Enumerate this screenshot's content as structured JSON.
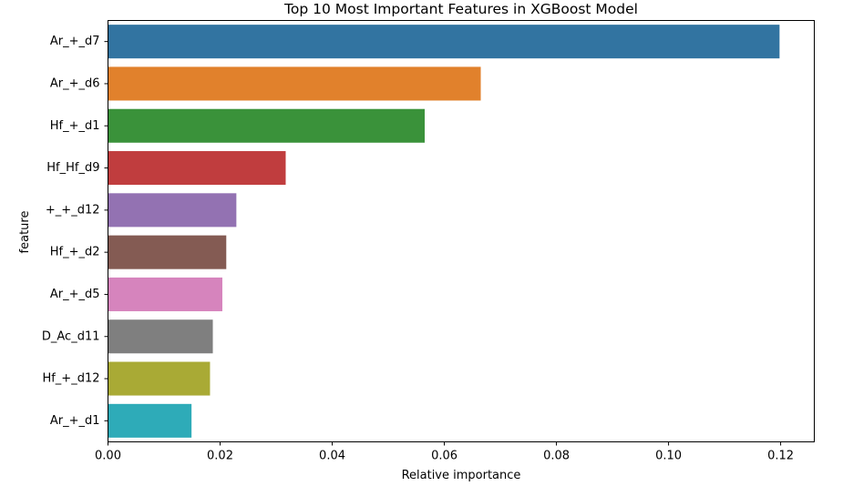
{
  "chart_data": {
    "type": "bar",
    "orientation": "horizontal",
    "title": "Top 10 Most Important Features in XGBoost Model",
    "xlabel": "Relative importance",
    "ylabel": "feature",
    "xlim": [
      0.0,
      0.126
    ],
    "xticks": [
      0.0,
      0.02,
      0.04,
      0.06,
      0.08,
      0.1,
      0.12
    ],
    "xtick_labels": [
      "0.00",
      "0.02",
      "0.04",
      "0.06",
      "0.08",
      "0.10",
      "0.12"
    ],
    "grid": false,
    "categories": [
      "Ar_+_d7",
      "Ar_+_d6",
      "Hf_+_d1",
      "Hf_Hf_d9",
      "+_+_d12",
      "Hf_+_d2",
      "Ar_+_d5",
      "D_Ac_d11",
      "Hf_+_d12",
      "Ar_+_d1"
    ],
    "values": [
      0.1198,
      0.0665,
      0.0565,
      0.0317,
      0.0229,
      0.0211,
      0.0204,
      0.0187,
      0.0182,
      0.0149
    ],
    "colors": [
      "#3274a1",
      "#e1812c",
      "#3a923a",
      "#c03d3e",
      "#9372b2",
      "#845b53",
      "#d684bd",
      "#7f7f7f",
      "#a9aa35",
      "#2eabb8"
    ]
  }
}
